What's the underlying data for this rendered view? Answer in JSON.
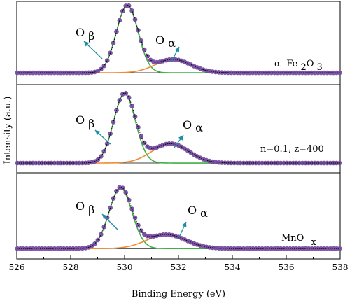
{
  "chart_data": {
    "type": "line",
    "xlabel": "Binding Energy (eV)",
    "ylabel": "Intensity (a.u.)",
    "xlim": [
      526,
      538
    ],
    "x_ticks": [
      "526",
      "528",
      "530",
      "532",
      "534",
      "536",
      "538"
    ],
    "grid": false,
    "colors": {
      "data_points": "#7a4fa8",
      "envelope": "#000000",
      "o_beta_component": "#3cb043",
      "o_alpha_component": "#f28a2e",
      "baseline": "#000000",
      "arrow": "#1f8ea0"
    },
    "panels": [
      {
        "sample_label": {
          "main": "α -Fe ",
          "sub1": "2",
          "mid": "O ",
          "sub2": "3"
        },
        "o_beta": {
          "symbol": "O",
          "sub": "β",
          "center": 530.1,
          "height": 1.0,
          "width": 0.95
        },
        "o_alpha": {
          "symbol": "O",
          "sub": "α",
          "center": 531.8,
          "height": 0.2,
          "width": 1.55
        },
        "baseline": 0.02
      },
      {
        "sample_label": {
          "main": "n=0.1,   z=400"
        },
        "o_beta": {
          "symbol": "O",
          "sub": "β",
          "center": 530.0,
          "height": 1.0,
          "width": 0.95
        },
        "o_alpha": {
          "symbol": "O",
          "sub": "α",
          "center": 531.7,
          "height": 0.28,
          "width": 1.6
        },
        "baseline": 0.02
      },
      {
        "sample_label": {
          "main": "MnO ",
          "sub": "x"
        },
        "o_beta": {
          "symbol": "O",
          "sub": "β",
          "center": 529.85,
          "height": 0.95,
          "width": 1.0
        },
        "o_alpha": {
          "symbol": "O",
          "sub": "α",
          "center": 531.55,
          "height": 0.22,
          "width": 1.7
        },
        "baseline": 0.02
      }
    ]
  }
}
